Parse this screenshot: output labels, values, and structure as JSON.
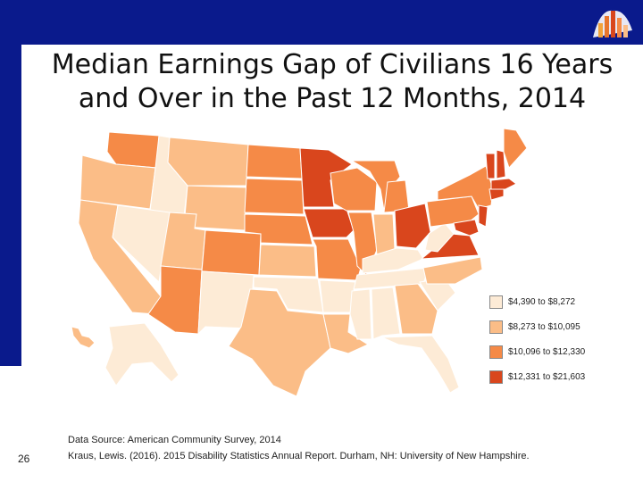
{
  "slide": {
    "title_line1": "Median Earnings Gap of Civilians 16 Years",
    "title_line2": "and Over in the Past 12 Months, 2014",
    "page_number": "26",
    "source_line1": "Data Source: American Community Survey, 2014",
    "source_line2": "Kraus, Lewis. (2016). 2015 Disability Statistics Annual Report. Durham, NH: University of New Hampshire."
  },
  "colors": {
    "frame": "#0a1a8c",
    "tier1": "#fdebd6",
    "tier2": "#fbbd87",
    "tier3": "#f58a47",
    "tier4": "#d9461d"
  },
  "legend": [
    {
      "label": "$4,390 to $8,272",
      "color": "#fdebd6"
    },
    {
      "label": "$8,273 to $10,095",
      "color": "#fbbd87"
    },
    {
      "label": "$10,096 to $12,330",
      "color": "#f58a47"
    },
    {
      "label": "$12,331 to $21,603",
      "color": "#d9461d"
    }
  ]
}
